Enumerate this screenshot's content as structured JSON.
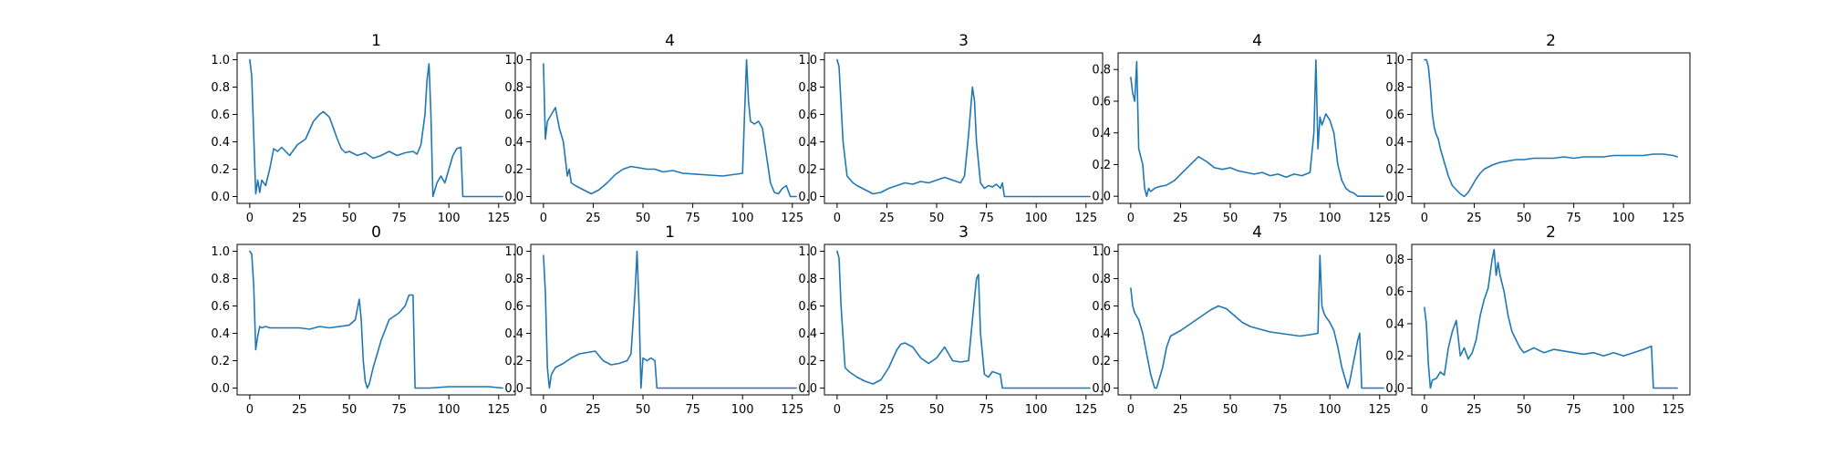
{
  "figure": {
    "line_color": "#1f77b4",
    "background": "#ffffff"
  },
  "chart_data": [
    {
      "type": "line",
      "title": "1",
      "xlim": [
        -6.35,
        133.35
      ],
      "ylim": [
        -0.05,
        1.05
      ],
      "xticks": [
        0,
        25,
        50,
        75,
        100,
        125
      ],
      "yticks": [
        0.0,
        0.2,
        0.4,
        0.6,
        0.8,
        1.0
      ],
      "x": [
        0,
        1,
        3,
        4,
        5,
        6,
        8,
        10,
        12,
        14,
        16,
        20,
        24,
        28,
        32,
        35,
        37,
        40,
        42,
        44,
        46,
        48,
        50,
        54,
        58,
        62,
        66,
        70,
        74,
        78,
        82,
        84,
        86,
        88,
        89,
        90,
        91,
        92,
        94,
        96,
        98,
        100,
        102,
        104,
        106,
        107,
        110,
        115,
        120,
        127
      ],
      "y": [
        1.0,
        0.88,
        0.02,
        0.12,
        0.03,
        0.12,
        0.08,
        0.2,
        0.35,
        0.33,
        0.36,
        0.3,
        0.38,
        0.42,
        0.55,
        0.6,
        0.62,
        0.58,
        0.5,
        0.42,
        0.35,
        0.32,
        0.33,
        0.3,
        0.32,
        0.28,
        0.3,
        0.33,
        0.3,
        0.32,
        0.33,
        0.31,
        0.38,
        0.6,
        0.85,
        0.97,
        0.6,
        0.0,
        0.1,
        0.15,
        0.1,
        0.2,
        0.3,
        0.35,
        0.36,
        0.0,
        0.0,
        0.0,
        0.0,
        0.0
      ]
    },
    {
      "type": "line",
      "title": "4",
      "xlim": [
        -6.35,
        133.35
      ],
      "ylim": [
        -0.05,
        1.05
      ],
      "xticks": [
        0,
        25,
        50,
        75,
        100,
        125
      ],
      "yticks": [
        0.0,
        0.2,
        0.4,
        0.6,
        0.8,
        1.0
      ],
      "x": [
        0,
        1,
        2,
        4,
        6,
        8,
        10,
        12,
        13,
        14,
        16,
        20,
        24,
        28,
        32,
        36,
        40,
        44,
        48,
        52,
        56,
        60,
        65,
        70,
        80,
        90,
        95,
        100,
        101,
        102,
        103,
        104,
        106,
        108,
        110,
        112,
        114,
        116,
        118,
        120,
        122,
        124,
        126,
        127
      ],
      "y": [
        0.97,
        0.42,
        0.55,
        0.6,
        0.65,
        0.5,
        0.4,
        0.15,
        0.2,
        0.1,
        0.08,
        0.05,
        0.02,
        0.05,
        0.1,
        0.16,
        0.2,
        0.22,
        0.21,
        0.2,
        0.2,
        0.18,
        0.19,
        0.17,
        0.16,
        0.15,
        0.16,
        0.17,
        0.6,
        1.0,
        0.7,
        0.55,
        0.53,
        0.55,
        0.5,
        0.3,
        0.1,
        0.03,
        0.02,
        0.06,
        0.08,
        0.0,
        0.0,
        0.0
      ]
    },
    {
      "type": "line",
      "title": "3",
      "xlim": [
        -6.35,
        133.35
      ],
      "ylim": [
        -0.05,
        1.05
      ],
      "xticks": [
        0,
        25,
        50,
        75,
        100,
        125
      ],
      "yticks": [
        0.0,
        0.2,
        0.4,
        0.6,
        0.8,
        1.0
      ],
      "x": [
        0,
        1,
        3,
        5,
        8,
        10,
        14,
        18,
        22,
        26,
        30,
        34,
        38,
        42,
        46,
        50,
        54,
        58,
        62,
        64,
        66,
        68,
        69,
        70,
        72,
        74,
        76,
        78,
        80,
        82,
        83,
        84,
        90,
        100,
        110,
        120,
        127
      ],
      "y": [
        1.0,
        0.95,
        0.4,
        0.15,
        0.1,
        0.08,
        0.05,
        0.02,
        0.03,
        0.06,
        0.08,
        0.1,
        0.09,
        0.11,
        0.1,
        0.12,
        0.14,
        0.12,
        0.1,
        0.15,
        0.45,
        0.8,
        0.7,
        0.4,
        0.1,
        0.06,
        0.08,
        0.07,
        0.09,
        0.06,
        0.1,
        0.0,
        0.0,
        0.0,
        0.0,
        0.0,
        0.0
      ]
    },
    {
      "type": "line",
      "title": "4",
      "xlim": [
        -6.35,
        133.35
      ],
      "ylim": [
        -0.045,
        0.905
      ],
      "xticks": [
        0,
        25,
        50,
        75,
        100,
        125
      ],
      "yticks": [
        0.0,
        0.2,
        0.4,
        0.6,
        0.8
      ],
      "x": [
        0,
        1,
        2,
        3,
        4,
        5,
        6,
        7,
        8,
        9,
        10,
        12,
        14,
        18,
        22,
        26,
        30,
        34,
        38,
        42,
        46,
        50,
        54,
        58,
        62,
        66,
        70,
        74,
        78,
        82,
        86,
        90,
        92,
        93,
        94,
        95,
        96,
        98,
        100,
        102,
        104,
        106,
        108,
        110,
        112,
        114,
        116,
        118,
        120,
        127
      ],
      "y": [
        0.75,
        0.65,
        0.6,
        0.85,
        0.3,
        0.25,
        0.2,
        0.05,
        0.0,
        0.05,
        0.03,
        0.05,
        0.06,
        0.07,
        0.1,
        0.15,
        0.2,
        0.25,
        0.22,
        0.18,
        0.17,
        0.18,
        0.16,
        0.15,
        0.14,
        0.15,
        0.13,
        0.14,
        0.12,
        0.14,
        0.13,
        0.15,
        0.4,
        0.86,
        0.3,
        0.5,
        0.45,
        0.52,
        0.48,
        0.4,
        0.2,
        0.1,
        0.05,
        0.03,
        0.02,
        0.0,
        0.0,
        0.0,
        0.0,
        0.0
      ]
    },
    {
      "type": "line",
      "title": "2",
      "xlim": [
        -6.35,
        133.35
      ],
      "ylim": [
        -0.05,
        1.05
      ],
      "xticks": [
        0,
        25,
        50,
        75,
        100,
        125
      ],
      "yticks": [
        0.0,
        0.2,
        0.4,
        0.6,
        0.8,
        1.0
      ],
      "x": [
        0,
        1,
        2,
        3,
        4,
        5,
        6,
        7,
        8,
        10,
        12,
        14,
        16,
        18,
        20,
        22,
        24,
        26,
        28,
        30,
        34,
        38,
        42,
        46,
        50,
        55,
        60,
        65,
        70,
        75,
        80,
        85,
        90,
        95,
        100,
        105,
        110,
        115,
        120,
        125,
        127
      ],
      "y": [
        1.0,
        1.0,
        0.95,
        0.8,
        0.6,
        0.5,
        0.45,
        0.42,
        0.35,
        0.25,
        0.15,
        0.08,
        0.05,
        0.02,
        0.0,
        0.03,
        0.08,
        0.13,
        0.17,
        0.2,
        0.23,
        0.25,
        0.26,
        0.27,
        0.27,
        0.28,
        0.28,
        0.28,
        0.29,
        0.28,
        0.29,
        0.29,
        0.29,
        0.3,
        0.3,
        0.3,
        0.3,
        0.31,
        0.31,
        0.3,
        0.29
      ]
    },
    {
      "type": "line",
      "title": "0",
      "xlim": [
        -6.35,
        133.35
      ],
      "ylim": [
        -0.05,
        1.05
      ],
      "xticks": [
        0,
        25,
        50,
        75,
        100,
        125
      ],
      "yticks": [
        0.0,
        0.2,
        0.4,
        0.6,
        0.8,
        1.0
      ],
      "x": [
        0,
        1,
        2,
        3,
        4,
        5,
        6,
        8,
        10,
        15,
        20,
        25,
        30,
        35,
        40,
        45,
        50,
        53,
        55,
        56,
        57,
        58,
        59,
        60,
        62,
        64,
        66,
        70,
        75,
        78,
        80,
        82,
        83,
        90,
        100,
        110,
        120,
        127
      ],
      "y": [
        1.0,
        0.98,
        0.75,
        0.28,
        0.38,
        0.45,
        0.44,
        0.45,
        0.44,
        0.44,
        0.44,
        0.44,
        0.43,
        0.45,
        0.44,
        0.45,
        0.46,
        0.5,
        0.65,
        0.5,
        0.2,
        0.05,
        0.0,
        0.03,
        0.15,
        0.25,
        0.35,
        0.5,
        0.55,
        0.6,
        0.68,
        0.68,
        0.0,
        0.0,
        0.01,
        0.01,
        0.01,
        0.0
      ]
    },
    {
      "type": "line",
      "title": "1",
      "xlim": [
        -6.35,
        133.35
      ],
      "ylim": [
        -0.05,
        1.05
      ],
      "xticks": [
        0,
        25,
        50,
        75,
        100,
        125
      ],
      "yticks": [
        0.0,
        0.2,
        0.4,
        0.6,
        0.8,
        1.0
      ],
      "x": [
        0,
        1,
        2,
        3,
        4,
        6,
        10,
        14,
        18,
        22,
        26,
        30,
        34,
        38,
        42,
        44,
        46,
        47,
        48,
        49,
        50,
        52,
        54,
        56,
        57,
        58,
        60,
        70,
        80,
        90,
        100,
        110,
        120,
        127
      ],
      "y": [
        0.97,
        0.7,
        0.15,
        0.0,
        0.1,
        0.15,
        0.18,
        0.22,
        0.25,
        0.26,
        0.27,
        0.2,
        0.17,
        0.18,
        0.2,
        0.25,
        0.7,
        1.0,
        0.6,
        0.0,
        0.22,
        0.2,
        0.22,
        0.2,
        0.0,
        0.0,
        0.0,
        0.0,
        0.0,
        0.0,
        0.0,
        0.0,
        0.0,
        0.0
      ]
    },
    {
      "type": "line",
      "title": "3",
      "xlim": [
        -6.35,
        133.35
      ],
      "ylim": [
        -0.05,
        1.05
      ],
      "xticks": [
        0,
        25,
        50,
        75,
        100,
        125
      ],
      "yticks": [
        0.0,
        0.2,
        0.4,
        0.6,
        0.8,
        1.0
      ],
      "x": [
        0,
        1,
        2,
        4,
        6,
        8,
        10,
        14,
        18,
        22,
        26,
        30,
        32,
        34,
        38,
        42,
        46,
        50,
        54,
        58,
        62,
        66,
        68,
        70,
        71,
        72,
        74,
        76,
        78,
        82,
        83,
        90,
        100,
        110,
        120,
        127
      ],
      "y": [
        1.0,
        0.95,
        0.6,
        0.15,
        0.12,
        0.1,
        0.08,
        0.05,
        0.03,
        0.06,
        0.15,
        0.28,
        0.32,
        0.33,
        0.3,
        0.22,
        0.18,
        0.22,
        0.3,
        0.2,
        0.19,
        0.2,
        0.5,
        0.8,
        0.83,
        0.4,
        0.1,
        0.08,
        0.12,
        0.1,
        0.0,
        0.0,
        0.0,
        0.0,
        0.0,
        0.0
      ]
    },
    {
      "type": "line",
      "title": "4",
      "xlim": [
        -6.35,
        133.35
      ],
      "ylim": [
        -0.05,
        1.05
      ],
      "xticks": [
        0,
        25,
        50,
        75,
        100,
        125
      ],
      "yticks": [
        0.0,
        0.2,
        0.4,
        0.6,
        0.8,
        1.0
      ],
      "x": [
        0,
        1,
        2,
        4,
        6,
        8,
        10,
        12,
        13,
        14,
        16,
        18,
        20,
        25,
        30,
        35,
        40,
        44,
        48,
        52,
        56,
        60,
        65,
        70,
        75,
        80,
        85,
        90,
        94,
        95,
        96,
        97,
        98,
        100,
        102,
        104,
        106,
        108,
        109,
        110,
        112,
        114,
        115,
        116,
        118,
        120,
        127
      ],
      "y": [
        0.73,
        0.6,
        0.55,
        0.5,
        0.4,
        0.25,
        0.1,
        0.0,
        0.0,
        0.05,
        0.15,
        0.3,
        0.38,
        0.42,
        0.47,
        0.52,
        0.57,
        0.6,
        0.58,
        0.53,
        0.48,
        0.45,
        0.43,
        0.41,
        0.4,
        0.39,
        0.38,
        0.39,
        0.4,
        0.97,
        0.6,
        0.55,
        0.52,
        0.48,
        0.42,
        0.3,
        0.15,
        0.05,
        0.0,
        0.05,
        0.2,
        0.35,
        0.4,
        0.0,
        0.0,
        0.0,
        0.0
      ]
    },
    {
      "type": "line",
      "title": "2",
      "xlim": [
        -6.35,
        133.35
      ],
      "ylim": [
        -0.0425,
        0.8925
      ],
      "xticks": [
        0,
        25,
        50,
        75,
        100,
        125
      ],
      "yticks": [
        0.0,
        0.2,
        0.4,
        0.6,
        0.8
      ],
      "x": [
        0,
        1,
        2,
        3,
        4,
        6,
        8,
        10,
        12,
        14,
        16,
        18,
        20,
        22,
        24,
        26,
        28,
        30,
        32,
        34,
        35,
        36,
        37,
        38,
        40,
        42,
        44,
        46,
        48,
        50,
        55,
        60,
        65,
        70,
        75,
        80,
        85,
        90,
        95,
        100,
        105,
        110,
        114,
        115,
        116,
        120,
        125,
        127
      ],
      "y": [
        0.5,
        0.4,
        0.15,
        0.0,
        0.05,
        0.06,
        0.1,
        0.08,
        0.25,
        0.35,
        0.42,
        0.2,
        0.25,
        0.18,
        0.22,
        0.3,
        0.45,
        0.55,
        0.62,
        0.8,
        0.86,
        0.7,
        0.78,
        0.7,
        0.6,
        0.45,
        0.35,
        0.3,
        0.25,
        0.22,
        0.25,
        0.22,
        0.24,
        0.23,
        0.22,
        0.21,
        0.22,
        0.2,
        0.22,
        0.2,
        0.22,
        0.24,
        0.26,
        0.0,
        0.0,
        0.0,
        0.0,
        0.0
      ]
    }
  ]
}
